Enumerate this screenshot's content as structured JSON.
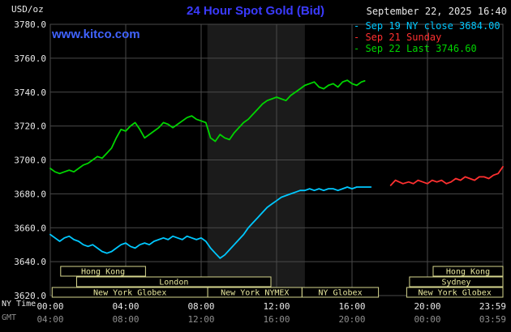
{
  "header": {
    "units_label": "USD/oz",
    "title": "24 Hour Spot Gold (Bid)",
    "timestamp": "September 22, 2025 16:40",
    "watermark": "www.kitco.com"
  },
  "colors": {
    "title": "#3b3bff",
    "watermark": "#4063ff",
    "background": "#000000"
  },
  "axis": {
    "ny_time_label": "NY Time",
    "gmt_label": "GMT",
    "x_ticks_ny": [
      "00:00",
      "04:00",
      "08:00",
      "12:00",
      "16:00",
      "20:00",
      "23:59"
    ],
    "x_ticks_gmt": [
      "04:00",
      "08:00",
      "12:00",
      "16:00",
      "20:00",
      "00:00",
      "03:59"
    ],
    "y_ticks": [
      "3780.0",
      "3760.0",
      "3740.0",
      "3720.0",
      "3700.0",
      "3680.0",
      "3660.0",
      "3640.0",
      "3620.0"
    ],
    "color_primary": "#e8e8e8",
    "color_secondary": "#8f8f8f"
  },
  "chart_data": {
    "type": "line",
    "title": "24 Hour Spot Gold (Bid)",
    "xlabel": "NY Time",
    "ylabel": "USD/oz",
    "xlim_hours": [
      0,
      24
    ],
    "ylim": [
      3620,
      3780
    ],
    "y_step": 20,
    "x_step_hours": 4,
    "grid": true,
    "grid_color": "#4a4a4a",
    "legend_position": "top-right",
    "nymex_band": {
      "start_hour": 8.33,
      "end_hour": 13.5,
      "color": "#1b1b1b"
    },
    "session_style": {
      "border": "#d6d68e",
      "text": "#e8e89e",
      "fill": "#000000"
    },
    "series": [
      {
        "id": "sep19-ny-close",
        "name": "Sep 19 NY close 3684.00",
        "color": "#00c8ff",
        "points": [
          [
            0,
            3656
          ],
          [
            0.25,
            3654
          ],
          [
            0.5,
            3652
          ],
          [
            0.75,
            3654
          ],
          [
            1,
            3655
          ],
          [
            1.25,
            3653
          ],
          [
            1.5,
            3652
          ],
          [
            1.75,
            3650
          ],
          [
            2,
            3649
          ],
          [
            2.25,
            3650
          ],
          [
            2.5,
            3648
          ],
          [
            2.75,
            3646
          ],
          [
            3,
            3645
          ],
          [
            3.25,
            3646
          ],
          [
            3.5,
            3648
          ],
          [
            3.75,
            3650
          ],
          [
            4,
            3651
          ],
          [
            4.25,
            3649
          ],
          [
            4.5,
            3648
          ],
          [
            4.75,
            3650
          ],
          [
            5,
            3651
          ],
          [
            5.25,
            3650
          ],
          [
            5.5,
            3652
          ],
          [
            5.75,
            3653
          ],
          [
            6,
            3654
          ],
          [
            6.25,
            3653
          ],
          [
            6.5,
            3655
          ],
          [
            6.75,
            3654
          ],
          [
            7,
            3653
          ],
          [
            7.25,
            3655
          ],
          [
            7.5,
            3654
          ],
          [
            7.75,
            3653
          ],
          [
            8,
            3654
          ],
          [
            8.25,
            3652
          ],
          [
            8.5,
            3648
          ],
          [
            8.75,
            3645
          ],
          [
            9,
            3642
          ],
          [
            9.25,
            3644
          ],
          [
            9.5,
            3647
          ],
          [
            9.75,
            3650
          ],
          [
            10,
            3653
          ],
          [
            10.25,
            3656
          ],
          [
            10.5,
            3660
          ],
          [
            10.75,
            3663
          ],
          [
            11,
            3666
          ],
          [
            11.25,
            3669
          ],
          [
            11.5,
            3672
          ],
          [
            11.75,
            3674
          ],
          [
            12,
            3676
          ],
          [
            12.25,
            3678
          ],
          [
            12.5,
            3679
          ],
          [
            12.75,
            3680
          ],
          [
            13,
            3681
          ],
          [
            13.25,
            3682
          ],
          [
            13.5,
            3682
          ],
          [
            13.75,
            3683
          ],
          [
            14,
            3682
          ],
          [
            14.25,
            3683
          ],
          [
            14.5,
            3682
          ],
          [
            14.75,
            3683
          ],
          [
            15,
            3683
          ],
          [
            15.25,
            3682
          ],
          [
            15.5,
            3683
          ],
          [
            15.75,
            3684
          ],
          [
            16,
            3683
          ],
          [
            16.25,
            3684
          ],
          [
            16.5,
            3684
          ],
          [
            17,
            3684
          ]
        ]
      },
      {
        "id": "sep21-sunday",
        "name": "Sep 21 Sunday",
        "color": "#ff3030",
        "points": [
          [
            18.05,
            3685
          ],
          [
            18.3,
            3688
          ],
          [
            18.5,
            3687
          ],
          [
            18.7,
            3686
          ],
          [
            19,
            3687
          ],
          [
            19.25,
            3686
          ],
          [
            19.5,
            3688
          ],
          [
            19.75,
            3687
          ],
          [
            20,
            3686
          ],
          [
            20.25,
            3688
          ],
          [
            20.5,
            3687
          ],
          [
            20.75,
            3688
          ],
          [
            21,
            3686
          ],
          [
            21.25,
            3687
          ],
          [
            21.5,
            3689
          ],
          [
            21.75,
            3688
          ],
          [
            22,
            3690
          ],
          [
            22.25,
            3689
          ],
          [
            22.5,
            3688
          ],
          [
            22.75,
            3690
          ],
          [
            23,
            3690
          ],
          [
            23.25,
            3689
          ],
          [
            23.5,
            3691
          ],
          [
            23.75,
            3692
          ],
          [
            24,
            3696
          ]
        ]
      },
      {
        "id": "sep22-last",
        "name": "Sep 22 Last 3746.60",
        "color": "#00d500",
        "points": [
          [
            0,
            3695
          ],
          [
            0.25,
            3693
          ],
          [
            0.5,
            3692
          ],
          [
            0.75,
            3693
          ],
          [
            1,
            3694
          ],
          [
            1.25,
            3693
          ],
          [
            1.5,
            3695
          ],
          [
            1.75,
            3697
          ],
          [
            2,
            3698
          ],
          [
            2.25,
            3700
          ],
          [
            2.5,
            3702
          ],
          [
            2.75,
            3701
          ],
          [
            3,
            3704
          ],
          [
            3.25,
            3707
          ],
          [
            3.5,
            3713
          ],
          [
            3.75,
            3718
          ],
          [
            4,
            3717
          ],
          [
            4.25,
            3720
          ],
          [
            4.5,
            3722
          ],
          [
            4.75,
            3718
          ],
          [
            5,
            3713
          ],
          [
            5.25,
            3715
          ],
          [
            5.5,
            3717
          ],
          [
            5.75,
            3719
          ],
          [
            6,
            3722
          ],
          [
            6.25,
            3721
          ],
          [
            6.5,
            3719
          ],
          [
            6.75,
            3721
          ],
          [
            7,
            3723
          ],
          [
            7.25,
            3725
          ],
          [
            7.5,
            3726
          ],
          [
            7.75,
            3724
          ],
          [
            8,
            3723
          ],
          [
            8.25,
            3722
          ],
          [
            8.5,
            3713
          ],
          [
            8.75,
            3711
          ],
          [
            9,
            3715
          ],
          [
            9.25,
            3713
          ],
          [
            9.5,
            3712
          ],
          [
            9.75,
            3716
          ],
          [
            10,
            3719
          ],
          [
            10.25,
            3722
          ],
          [
            10.5,
            3724
          ],
          [
            10.75,
            3727
          ],
          [
            11,
            3730
          ],
          [
            11.25,
            3733
          ],
          [
            11.5,
            3735
          ],
          [
            11.75,
            3736
          ],
          [
            12,
            3737
          ],
          [
            12.25,
            3736
          ],
          [
            12.5,
            3735
          ],
          [
            12.75,
            3738
          ],
          [
            13,
            3740
          ],
          [
            13.25,
            3742
          ],
          [
            13.5,
            3744
          ],
          [
            13.75,
            3745
          ],
          [
            14,
            3746
          ],
          [
            14.25,
            3743
          ],
          [
            14.5,
            3742
          ],
          [
            14.75,
            3744
          ],
          [
            15,
            3745
          ],
          [
            15.25,
            3743
          ],
          [
            15.5,
            3746
          ],
          [
            15.75,
            3747
          ],
          [
            16,
            3745
          ],
          [
            16.25,
            3744
          ],
          [
            16.5,
            3746
          ],
          [
            16.67,
            3746.6
          ]
        ]
      }
    ],
    "sessions": [
      {
        "label": "Hong Kong",
        "row": 0,
        "start": 0.55,
        "end": 5.05
      },
      {
        "label": "Hong Kong",
        "row": 0,
        "start": 20.3,
        "end": 24
      },
      {
        "label": "London",
        "row": 1,
        "start": 1.4,
        "end": 11.7
      },
      {
        "label": "Sydney",
        "row": 1,
        "start": 19.05,
        "end": 24
      },
      {
        "label": "New York Globex",
        "row": 2,
        "start": 0.1,
        "end": 8.35
      },
      {
        "label": "New York NYMEX",
        "row": 2,
        "start": 8.35,
        "end": 13.35
      },
      {
        "label": "NY Globex",
        "row": 2,
        "start": 13.35,
        "end": 17.4
      },
      {
        "label": "New York Globex",
        "row": 2,
        "start": 18.9,
        "end": 24
      }
    ]
  }
}
